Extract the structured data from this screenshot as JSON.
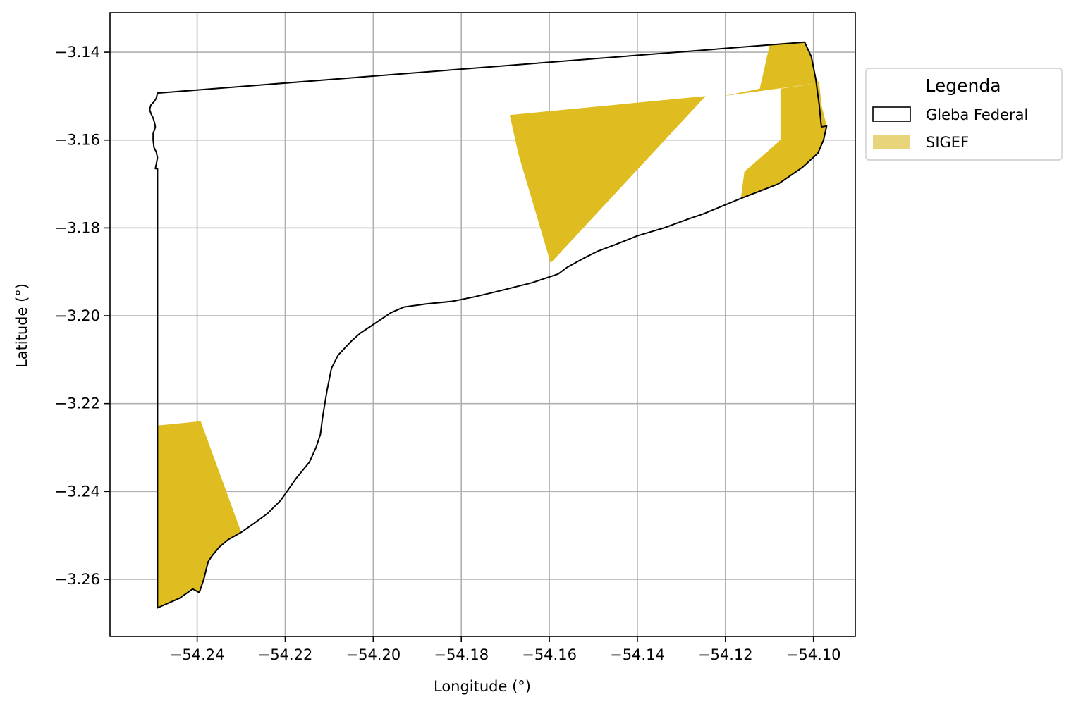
{
  "chart_data": {
    "type": "map",
    "xlabel": "Longitude (°)",
    "ylabel": "Latitude (°)",
    "xlim": [
      -54.2598,
      -54.0905
    ],
    "ylim": [
      -3.273,
      -3.131
    ],
    "grid": true,
    "x_ticks": [
      -54.24,
      -54.22,
      -54.2,
      -54.18,
      -54.16,
      -54.14,
      -54.12,
      -54.1
    ],
    "y_ticks": [
      -3.14,
      -3.16,
      -3.18,
      -3.2,
      -3.22,
      -3.24,
      -3.26
    ],
    "x_tick_labels": [
      "−54.24",
      "−54.22",
      "−54.20",
      "−54.18",
      "−54.16",
      "−54.14",
      "−54.12",
      "−54.10"
    ],
    "y_tick_labels": [
      "−3.14",
      "−3.16",
      "−3.18",
      "−3.20",
      "−3.22",
      "−3.24",
      "−3.26"
    ],
    "legend": {
      "title": "Legenda",
      "placement": "outside-upper-right",
      "entries": [
        {
          "label": "Gleba Federal",
          "style": "outline",
          "stroke": "#000000",
          "fill": "none"
        },
        {
          "label": "SIGEF",
          "style": "fill",
          "fill": "#e8d47a"
        }
      ]
    },
    "layers": [
      {
        "name": "Gleba Federal",
        "stroke": "#000000",
        "fill": "none",
        "polygons": [
          [
            [
              -54.249,
              -3.1493
            ],
            [
              -54.102,
              -3.1377
            ],
            [
              -54.1005,
              -3.141
            ],
            [
              -54.0995,
              -3.146
            ],
            [
              -54.0987,
              -3.152
            ],
            [
              -54.0982,
              -3.157
            ],
            [
              -54.097,
              -3.1568
            ],
            [
              -54.0977,
              -3.16
            ],
            [
              -54.099,
              -3.163
            ],
            [
              -54.1025,
              -3.1662
            ],
            [
              -54.108,
              -3.17
            ],
            [
              -54.1165,
              -3.1733
            ],
            [
              -54.125,
              -3.1768
            ],
            [
              -54.1285,
              -3.178
            ],
            [
              -54.134,
              -3.18
            ],
            [
              -54.14,
              -3.1818
            ],
            [
              -54.145,
              -3.1838
            ],
            [
              -54.149,
              -3.1853
            ],
            [
              -54.152,
              -3.1868
            ],
            [
              -54.156,
              -3.189
            ],
            [
              -54.158,
              -3.1905
            ],
            [
              -54.164,
              -3.1925
            ],
            [
              -54.172,
              -3.1945
            ],
            [
              -54.177,
              -3.1957
            ],
            [
              -54.182,
              -3.1967
            ],
            [
              -54.188,
              -3.1973
            ],
            [
              -54.193,
              -3.198
            ],
            [
              -54.196,
              -3.1993
            ],
            [
              -54.2,
              -3.202
            ],
            [
              -54.203,
              -3.204
            ],
            [
              -54.205,
              -3.2058
            ],
            [
              -54.208,
              -3.209
            ],
            [
              -54.2095,
              -3.212
            ],
            [
              -54.2105,
              -3.217
            ],
            [
              -54.2115,
              -3.223
            ],
            [
              -54.212,
              -3.227
            ],
            [
              -54.213,
              -3.23
            ],
            [
              -54.2145,
              -3.2333
            ],
            [
              -54.2175,
              -3.237
            ],
            [
              -54.221,
              -3.242
            ],
            [
              -54.224,
              -3.245
            ],
            [
              -54.227,
              -3.2472
            ],
            [
              -54.23,
              -3.2493
            ],
            [
              -54.233,
              -3.251
            ],
            [
              -54.235,
              -3.2527
            ],
            [
              -54.2365,
              -3.2545
            ],
            [
              -54.2375,
              -3.256
            ],
            [
              -54.2385,
              -3.26
            ],
            [
              -54.2395,
              -3.263
            ],
            [
              -54.241,
              -3.2622
            ],
            [
              -54.244,
              -3.2643
            ],
            [
              -54.249,
              -3.2665
            ],
            [
              -54.249,
              -3.1665
            ],
            [
              -54.2495,
              -3.1665
            ],
            [
              -54.2493,
              -3.1655
            ],
            [
              -54.249,
              -3.164
            ],
            [
              -54.2493,
              -3.1627
            ],
            [
              -54.2498,
              -3.1617
            ],
            [
              -54.25,
              -3.16
            ],
            [
              -54.25,
              -3.1585
            ],
            [
              -54.2497,
              -3.1577
            ],
            [
              -54.2495,
              -3.157
            ],
            [
              -54.2497,
              -3.156
            ],
            [
              -54.25,
              -3.155
            ],
            [
              -54.2505,
              -3.154
            ],
            [
              -54.2508,
              -3.153
            ],
            [
              -54.2505,
              -3.152
            ],
            [
              -54.2498,
              -3.1513
            ],
            [
              -54.2493,
              -3.1505
            ],
            [
              -54.249,
              -3.1493
            ]
          ]
        ]
      },
      {
        "name": "SIGEF",
        "fill": "#dfbd20",
        "stroke": "none",
        "polygons": [
          [
            [
              -54.249,
              -3.225
            ],
            [
              -54.2392,
              -3.224
            ],
            [
              -54.23,
              -3.2493
            ],
            [
              -54.234,
              -3.2518
            ],
            [
              -54.2365,
              -3.2545
            ],
            [
              -54.2375,
              -3.256
            ],
            [
              -54.2385,
              -3.26
            ],
            [
              -54.2395,
              -3.263
            ],
            [
              -54.241,
              -3.2622
            ],
            [
              -54.244,
              -3.2643
            ],
            [
              -54.249,
              -3.2665
            ]
          ],
          [
            [
              -54.169,
              -3.1543
            ],
            [
              -54.1245,
              -3.15
            ],
            [
              -54.1597,
              -3.188
            ],
            [
              -54.167,
              -3.1633
            ]
          ],
          [
            [
              -54.1122,
              -3.1483
            ],
            [
              -54.11,
              -3.1385
            ],
            [
              -54.102,
              -3.1377
            ],
            [
              -54.1005,
              -3.141
            ],
            [
              -54.0995,
              -3.146
            ],
            [
              -54.0987,
              -3.147
            ],
            [
              -54.1075,
              -3.1483
            ],
            [
              -54.1075,
              -3.16
            ],
            [
              -54.1157,
              -3.1672
            ],
            [
              -54.1165,
              -3.1733
            ],
            [
              -54.108,
              -3.17
            ],
            [
              -54.1025,
              -3.1662
            ],
            [
              -54.099,
              -3.163
            ],
            [
              -54.0977,
              -3.16
            ],
            [
              -54.097,
              -3.1568
            ],
            [
              -54.0982,
              -3.152
            ],
            [
              -54.0987,
              -3.147
            ],
            [
              -54.1205,
              -3.15
            ]
          ]
        ]
      }
    ]
  }
}
